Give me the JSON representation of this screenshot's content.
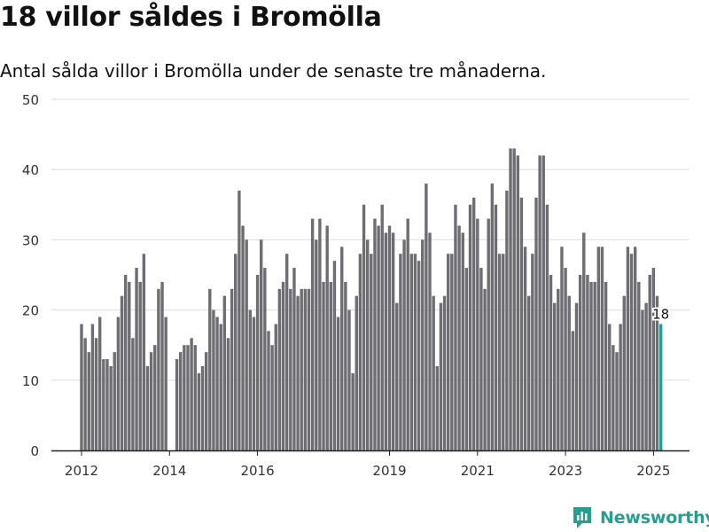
{
  "title": "18 villor såldes i Bromölla",
  "subtitle": "Antal sålda villor i Bromölla under de senaste tre månaderna.",
  "brand": {
    "name": "Newsworthy"
  },
  "colors": {
    "bar": "#6e6d72",
    "highlight": "#2a9d8f",
    "grid": "#dddddd",
    "axis": "#222222",
    "brand": "#2a9d8f"
  },
  "chart_data": {
    "type": "bar",
    "title": "18 villor såldes i Bromölla",
    "subtitle": "Antal sålda villor i Bromölla under de senaste tre månaderna.",
    "xlabel": "",
    "ylabel": "",
    "ylim": [
      0,
      50
    ],
    "yticks": [
      0,
      10,
      20,
      30,
      40,
      50
    ],
    "xticks": [
      "2012",
      "2014",
      "2016",
      "2019",
      "2021",
      "2023",
      "2025"
    ],
    "grid": true,
    "start_month": "2012-01",
    "end_month": "2025-02",
    "values": [
      18,
      16,
      14,
      18,
      16,
      19,
      13,
      13,
      12,
      14,
      19,
      22,
      25,
      24,
      16,
      26,
      24,
      28,
      12,
      14,
      15,
      23,
      24,
      19,
      0,
      0,
      13,
      14,
      15,
      15,
      16,
      15,
      11,
      12,
      14,
      23,
      20,
      19,
      18,
      22,
      16,
      23,
      28,
      37,
      32,
      30,
      20,
      19,
      25,
      30,
      26,
      17,
      15,
      18,
      23,
      24,
      28,
      23,
      26,
      22,
      23,
      23,
      23,
      33,
      30,
      33,
      24,
      32,
      24,
      27,
      19,
      29,
      24,
      20,
      11,
      22,
      28,
      35,
      30,
      28,
      33,
      32,
      35,
      31,
      32,
      31,
      21,
      28,
      30,
      33,
      28,
      28,
      27,
      30,
      38,
      31,
      22,
      12,
      21,
      22,
      28,
      28,
      35,
      32,
      31,
      26,
      35,
      36,
      33,
      26,
      23,
      33,
      38,
      35,
      28,
      28,
      37,
      43,
      43,
      42,
      36,
      29,
      22,
      28,
      36,
      42,
      42,
      35,
      25,
      21,
      23,
      29,
      26,
      22,
      17,
      21,
      25,
      31,
      25,
      24,
      24,
      29,
      29,
      24,
      18,
      15,
      14,
      18,
      22,
      29,
      28,
      29,
      24,
      20,
      21,
      25,
      26,
      22,
      18
    ],
    "highlight_last": true,
    "annotation": "18"
  }
}
